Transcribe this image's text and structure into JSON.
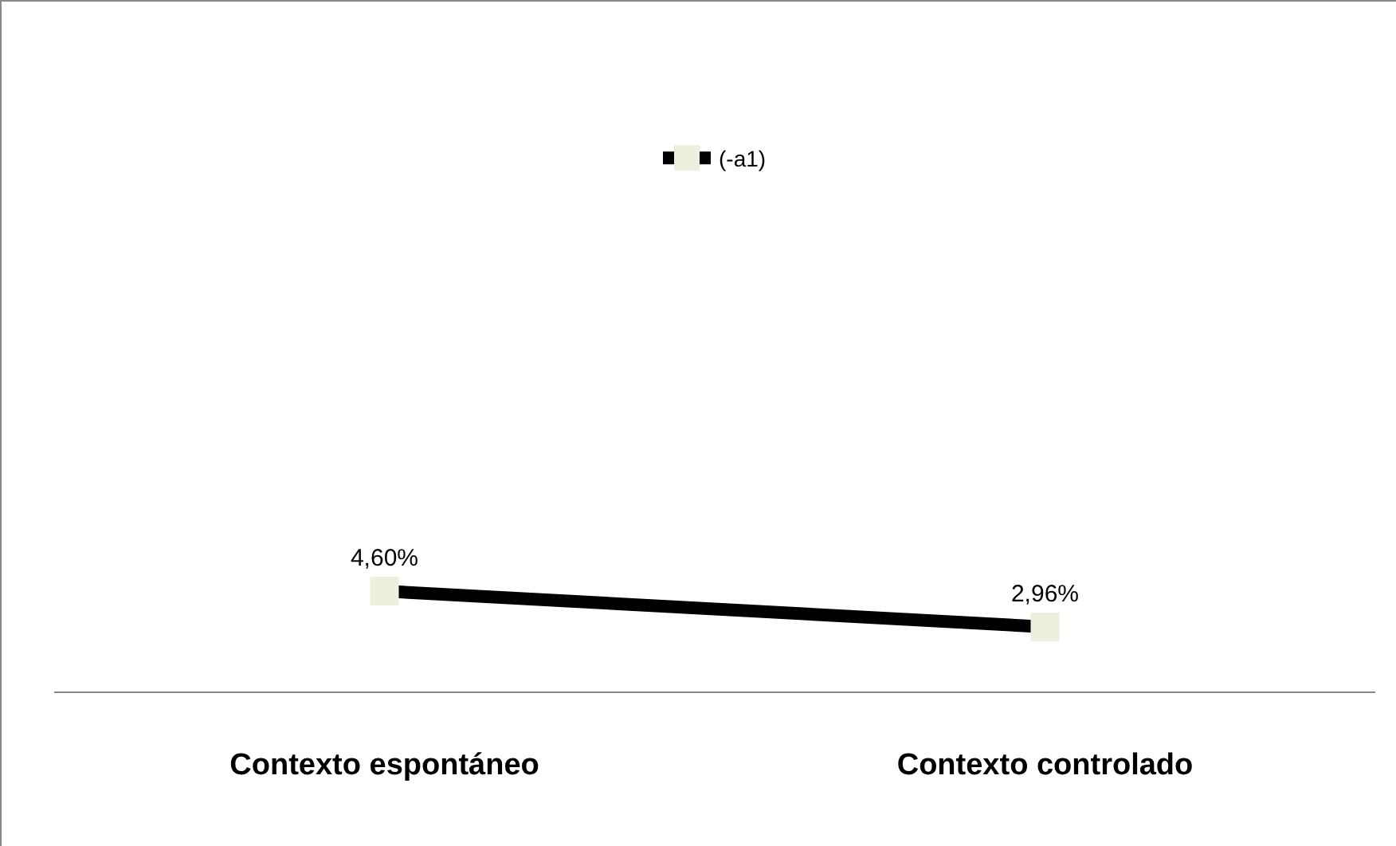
{
  "chart_data": {
    "type": "line",
    "categories": [
      "Contexto espontáneo",
      "Contexto controlado"
    ],
    "series": [
      {
        "name": "(-a1)",
        "color": "#000000",
        "colors": [
          "#ebf1de",
          "#ebf1de"
        ],
        "values": [
          4.6,
          2.96
        ],
        "value_labels": [
          "4,60%",
          "2,96%"
        ]
      }
    ],
    "legend": "top",
    "marker": "square",
    "line_style": "solid",
    "grid": false,
    "tick_labels": "x"
  }
}
